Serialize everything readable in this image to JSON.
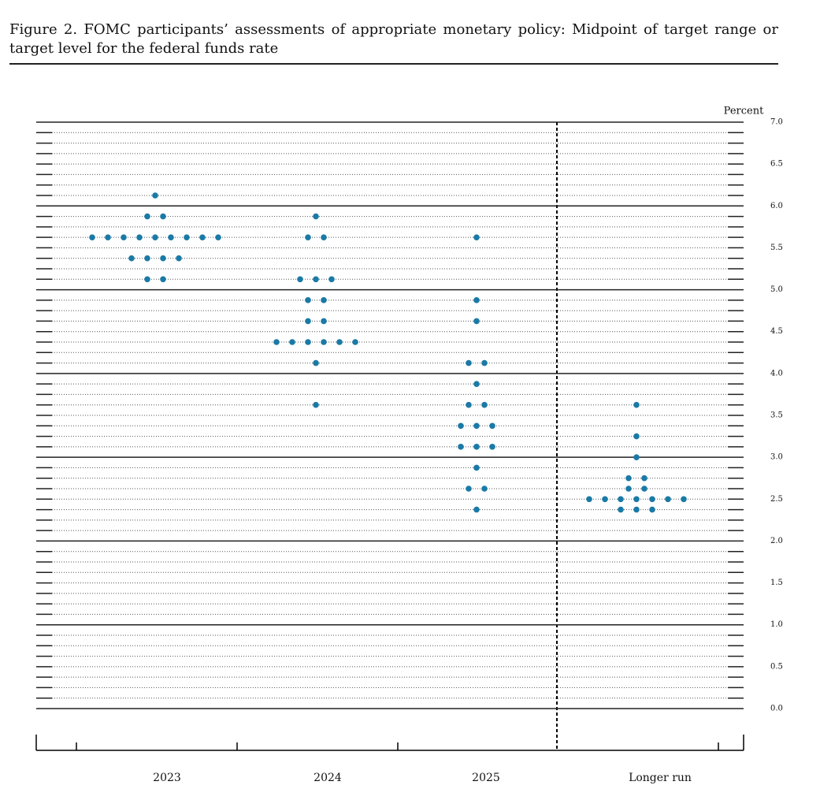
{
  "chart_data": {
    "type": "dot",
    "title": "Figure 2.  FOMC participants’ assessments of appropriate monetary policy: Midpoint of target range or target level for the federal funds rate",
    "ylabel": "Percent",
    "categories": [
      "2023",
      "2024",
      "2025",
      "Longer run"
    ],
    "values": [
      [
        6.125,
        5.875,
        5.875,
        5.625,
        5.625,
        5.625,
        5.625,
        5.625,
        5.625,
        5.625,
        5.625,
        5.625,
        5.375,
        5.375,
        5.375,
        5.375,
        5.125,
        5.125
      ],
      [
        5.875,
        5.625,
        5.625,
        5.125,
        5.125,
        5.125,
        4.875,
        4.875,
        4.625,
        4.625,
        4.375,
        4.375,
        4.375,
        4.375,
        4.375,
        4.375,
        4.125,
        3.625
      ],
      [
        5.625,
        4.875,
        4.625,
        4.125,
        4.125,
        3.875,
        3.625,
        3.625,
        3.375,
        3.375,
        3.375,
        3.125,
        3.125,
        3.125,
        2.875,
        2.625,
        2.625,
        2.375
      ],
      [
        3.625,
        3.25,
        3.0,
        2.75,
        2.75,
        2.625,
        2.625,
        2.5,
        2.5,
        2.5,
        2.5,
        2.5,
        2.5,
        2.5,
        2.375,
        2.375,
        2.375
      ]
    ],
    "color": "#1a7aa6",
    "ylim": [
      0,
      7
    ],
    "yticks": [
      {
        "value": 0,
        "label": "0.0"
      },
      0.5,
      {
        "value": 1,
        "label": "1.0"
      },
      1.5,
      {
        "value": 2,
        "label": "2.0"
      },
      2.5,
      {
        "value": 3,
        "label": "3.0"
      },
      3.5,
      {
        "value": 4,
        "label": "4.0"
      },
      4.5,
      {
        "value": 5,
        "label": "5.0"
      },
      5.5,
      {
        "value": 6,
        "label": "6.0"
      },
      6.5,
      {
        "value": 7,
        "label": "7.0"
      }
    ],
    "minor_yticks": [
      0.125,
      0.25,
      0.375,
      0.625,
      0.75,
      0.875,
      1.125,
      1.25,
      1.375,
      1.625,
      1.75,
      1.875,
      2.125,
      2.25,
      2.375,
      2.625,
      2.75,
      2.875,
      3.125,
      3.25,
      3.375,
      3.625,
      3.75,
      3.875,
      4.125,
      4.25,
      4.375,
      4.625,
      4.75,
      4.875,
      5.125,
      5.25,
      5.375,
      5.625,
      5.75,
      5.875,
      6.125,
      6.25,
      6.375,
      6.625,
      6.75,
      6.875
    ],
    "grid": true
  }
}
